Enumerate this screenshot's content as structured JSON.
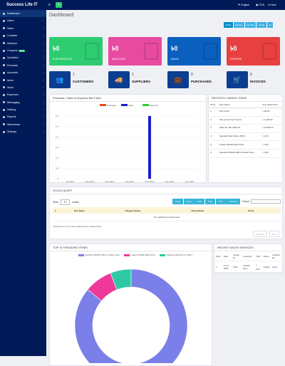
{
  "brand": "Success Life IT",
  "topbar": {
    "language": "English",
    "pos": "POS",
    "user": "Hinol"
  },
  "sidebar": [
    {
      "label": "Dashboard",
      "active": true
    },
    {
      "label": "Users"
    },
    {
      "label": "Sales"
    },
    {
      "label": "Contacts"
    },
    {
      "label": "Advance"
    },
    {
      "label": "Coupons",
      "badge": "NEW"
    },
    {
      "label": "Quotation"
    },
    {
      "label": "Purchase"
    },
    {
      "label": "Accounts"
    },
    {
      "label": "Items"
    },
    {
      "label": "Stock"
    },
    {
      "label": "Expenses"
    },
    {
      "label": "Messaging"
    },
    {
      "label": "Helping"
    },
    {
      "label": "Reports"
    },
    {
      "label": "Warehouse"
    },
    {
      "label": "Settings"
    }
  ],
  "page_title": "Dashboard",
  "filters": [
    "Today",
    "Weekly",
    "Monthly",
    "Yearly",
    "All"
  ],
  "stats": [
    {
      "value": "৳0",
      "label": "PURCHASE DUE",
      "color": "#2ecc71"
    },
    {
      "value": "৳0",
      "label": "SALES DUE",
      "color": "#e84aa0"
    },
    {
      "value": "৳0",
      "label": "SALES",
      "color": "#0b5fbf"
    },
    {
      "value": "৳0",
      "label": "EXPENSE",
      "color": "#e84040"
    }
  ],
  "infos": [
    {
      "value": "1",
      "label": "CUSTOMERS"
    },
    {
      "value": "1",
      "label": "SUPPLIERS"
    },
    {
      "value": "0",
      "label": "PURCHASES"
    },
    {
      "value": "0",
      "label": "INVOICES"
    }
  ],
  "bar_chart": {
    "title": "Purchase, Sales & Expense Bar Chart"
  },
  "chart_data": {
    "type": "bar",
    "categories": [
      "Jul-2024",
      "Aug-2024",
      "Sep-2024",
      "Oct-2024",
      "Nov-2024",
      "Dec-2024",
      "Jan-2025"
    ],
    "series": [
      {
        "name": "Purchase",
        "color": "#e84a1a",
        "values": [
          0,
          0,
          0,
          0,
          0,
          0,
          0
        ]
      },
      {
        "name": "Sales",
        "color": "#1d1dcf",
        "values": [
          0,
          0,
          0,
          0,
          3,
          0,
          0
        ]
      },
      {
        "name": "Expense",
        "color": "#2ecc2e",
        "values": [
          0,
          0,
          0,
          0,
          0,
          0,
          0
        ]
      }
    ],
    "yticks": [
      "0",
      "0.5",
      "1.0",
      "1.5",
      "2.0",
      "2.5",
      "3.0"
    ],
    "ylim": [
      0,
      3.2
    ],
    "grid": true,
    "legend": "top"
  },
  "recent_items": {
    "title": "RECENTLY ADDED ITEMS",
    "headers": [
      "Sl.No",
      "Item Name",
      "Item Sales Price"
    ],
    "rows": [
      [
        "1",
        "Pan Fresh",
        "৳ 38.00"
      ],
      [
        "2",
        "Pan control for 5 rooms",
        "৳ 1,200.00"
      ],
      [
        "3",
        "2022 32\" MH 432CC3",
        "৳ 32,800.67"
      ],
      [
        "4",
        "Sandisk Flash Drive USB C",
        "৳ 2.00"
      ],
      [
        "5",
        "Imation 8KGB Flash Drive",
        "৳ 3.00"
      ],
      [
        "6",
        "Sandisk 256GB USB 2.0 Flash Drive",
        "৳ 2.00"
      ]
    ]
  },
  "stock_alert": {
    "title": "STOCK ALERT",
    "show": "Show",
    "per_page": "10",
    "entries": "entries",
    "buttons": [
      "Copy",
      "Excel",
      "PDF",
      "Print",
      "CSV",
      "Columns"
    ],
    "search": "Search:",
    "headers": [
      "#",
      "Item Name",
      "Category Name",
      "Brand Name",
      "Stock"
    ],
    "empty": "No matching records found",
    "info": "Showing 0 to 0 of 0 entries (filtered from 1 total entries)",
    "prev": "Previous",
    "next": "Next"
  },
  "trending": {
    "title": "TOP 10 TRENDING ITEMS",
    "legend": [
      "Sandisk 256GB USB 2.0 Flash Drive",
      "Imation 8KGB Flash Drive",
      "Sandisk Flash Drive USB C"
    ]
  },
  "pie_data": {
    "type": "pie",
    "labels": [
      "Sandisk 256GB USB 2.0 Flash Drive",
      "Imation 8KGB Flash Drive",
      "Sandisk Flash Drive USB C"
    ],
    "values": [
      86,
      8,
      6
    ],
    "colors": [
      "#7b7fe8",
      "#f0389a",
      "#2ec9a4"
    ]
  },
  "recent_sales": {
    "title": "RECENT SALES INVOICES",
    "headers": [
      "Sl.No",
      "Date",
      "Invoice ID",
      "Customer",
      "Total",
      "Status",
      "Created By"
    ],
    "rows": [
      [
        "1",
        "17-11-2024",
        "SL01",
        "Yeahist Brno",
        "৳ 2.00",
        "Unpaid",
        "Hinol"
      ]
    ]
  }
}
